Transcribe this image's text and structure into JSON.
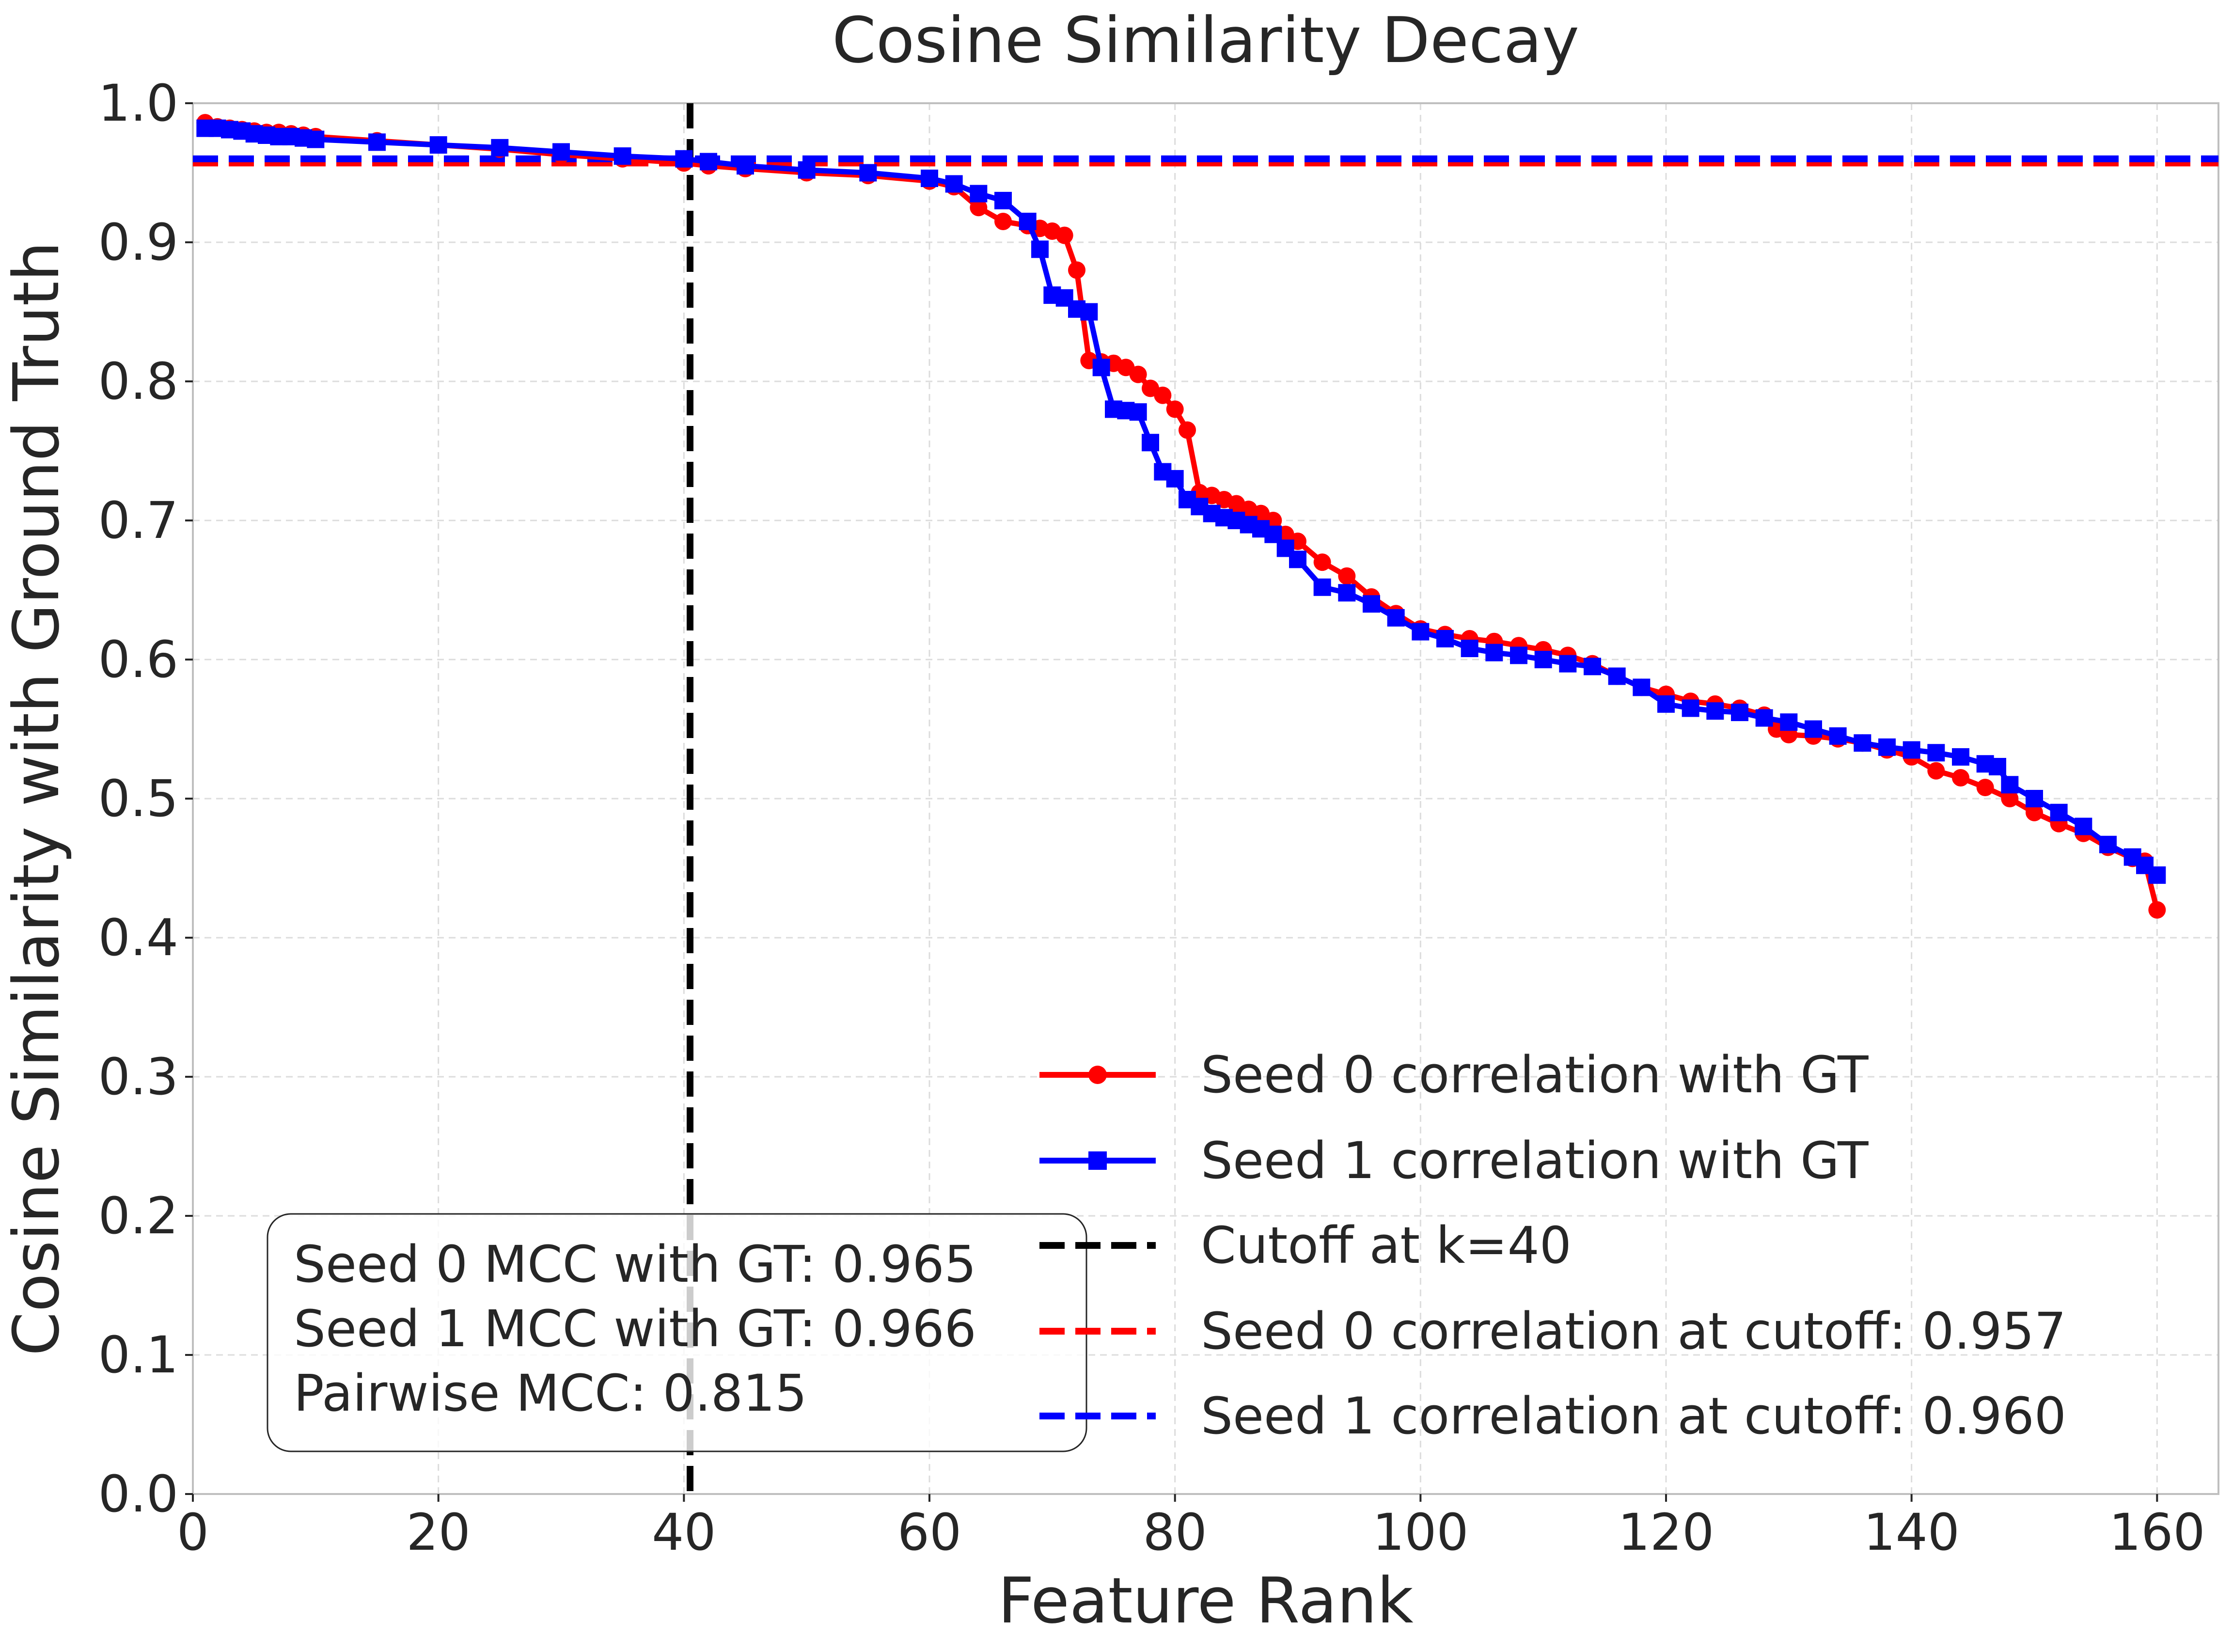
{
  "chart_data": {
    "type": "line",
    "title": "Cosine Similarity Decay",
    "xlabel": "Feature Rank",
    "ylabel": "Cosine Similarity with Ground Truth",
    "xlim": [
      0,
      165
    ],
    "ylim": [
      0.0,
      1.0
    ],
    "x_ticks": [
      0,
      20,
      40,
      60,
      80,
      100,
      120,
      140,
      160
    ],
    "y_ticks": [
      0.0,
      0.1,
      0.2,
      0.3,
      0.4,
      0.5,
      0.6,
      0.7,
      0.8,
      0.9,
      1.0
    ],
    "grid": true,
    "legend_position": "lower-right",
    "series": [
      {
        "name": "Seed 0 correlation with GT",
        "color": "#ff0000",
        "marker": "circle",
        "x": [
          1,
          2,
          3,
          4,
          5,
          6,
          7,
          8,
          9,
          10,
          15,
          20,
          25,
          30,
          35,
          40,
          42,
          45,
          50,
          55,
          60,
          62,
          64,
          66,
          68,
          69,
          70,
          71,
          72,
          73,
          74,
          75,
          76,
          77,
          78,
          79,
          80,
          81,
          82,
          83,
          84,
          85,
          86,
          87,
          88,
          89,
          90,
          92,
          94,
          96,
          98,
          100,
          102,
          104,
          106,
          108,
          110,
          112,
          114,
          116,
          118,
          120,
          122,
          124,
          126,
          128,
          129,
          130,
          132,
          134,
          136,
          138,
          140,
          142,
          144,
          146,
          148,
          150,
          152,
          154,
          156,
          158,
          159,
          160
        ],
        "y": [
          0.986,
          0.983,
          0.982,
          0.981,
          0.98,
          0.979,
          0.979,
          0.978,
          0.977,
          0.976,
          0.973,
          0.97,
          0.967,
          0.963,
          0.96,
          0.957,
          0.955,
          0.953,
          0.95,
          0.948,
          0.944,
          0.94,
          0.925,
          0.915,
          0.912,
          0.91,
          0.908,
          0.905,
          0.88,
          0.815,
          0.814,
          0.813,
          0.81,
          0.805,
          0.795,
          0.79,
          0.78,
          0.765,
          0.72,
          0.718,
          0.715,
          0.712,
          0.708,
          0.705,
          0.7,
          0.69,
          0.685,
          0.67,
          0.66,
          0.645,
          0.633,
          0.622,
          0.618,
          0.615,
          0.613,
          0.61,
          0.607,
          0.603,
          0.597,
          0.588,
          0.58,
          0.575,
          0.57,
          0.568,
          0.565,
          0.56,
          0.55,
          0.546,
          0.545,
          0.543,
          0.54,
          0.535,
          0.53,
          0.52,
          0.515,
          0.508,
          0.5,
          0.49,
          0.482,
          0.475,
          0.465,
          0.457,
          0.455,
          0.42
        ]
      },
      {
        "name": "Seed 1 correlation with GT",
        "color": "#0000ff",
        "marker": "square",
        "x": [
          1,
          2,
          3,
          4,
          5,
          6,
          7,
          8,
          9,
          10,
          15,
          20,
          25,
          30,
          35,
          40,
          42,
          45,
          50,
          55,
          60,
          62,
          64,
          66,
          68,
          69,
          70,
          71,
          72,
          73,
          74,
          75,
          76,
          77,
          78,
          79,
          80,
          81,
          82,
          83,
          84,
          85,
          86,
          87,
          88,
          89,
          90,
          92,
          94,
          96,
          98,
          100,
          102,
          104,
          106,
          108,
          110,
          112,
          114,
          116,
          118,
          120,
          122,
          124,
          126,
          128,
          130,
          132,
          134,
          136,
          138,
          140,
          142,
          144,
          146,
          147,
          148,
          150,
          152,
          154,
          156,
          158,
          159,
          160
        ],
        "y": [
          0.982,
          0.982,
          0.981,
          0.98,
          0.978,
          0.977,
          0.976,
          0.976,
          0.975,
          0.974,
          0.972,
          0.97,
          0.968,
          0.965,
          0.962,
          0.96,
          0.958,
          0.955,
          0.952,
          0.95,
          0.946,
          0.942,
          0.935,
          0.93,
          0.915,
          0.895,
          0.862,
          0.86,
          0.852,
          0.85,
          0.81,
          0.78,
          0.779,
          0.778,
          0.756,
          0.735,
          0.73,
          0.715,
          0.71,
          0.705,
          0.702,
          0.7,
          0.697,
          0.694,
          0.69,
          0.68,
          0.672,
          0.652,
          0.648,
          0.64,
          0.63,
          0.62,
          0.615,
          0.608,
          0.605,
          0.603,
          0.6,
          0.597,
          0.595,
          0.588,
          0.58,
          0.568,
          0.565,
          0.563,
          0.562,
          0.558,
          0.555,
          0.55,
          0.545,
          0.54,
          0.537,
          0.535,
          0.533,
          0.53,
          0.525,
          0.523,
          0.51,
          0.5,
          0.49,
          0.48,
          0.467,
          0.458,
          0.452,
          0.445
        ]
      }
    ],
    "reference_lines": [
      {
        "name": "Cutoff at k=40",
        "orientation": "vertical",
        "value": 40.5,
        "color": "#000000"
      },
      {
        "name": "Seed 0 correlation at cutoff: 0.957",
        "orientation": "horizontal",
        "value": 0.957,
        "color": "#ff0000"
      },
      {
        "name": "Seed 1 correlation at cutoff: 0.960",
        "orientation": "horizontal",
        "value": 0.96,
        "color": "#0000ff"
      }
    ],
    "annotation": {
      "lines": [
        "Seed 0 MCC with GT: 0.965",
        "Seed 1 MCC with GT: 0.966",
        "Pairwise MCC: 0.815"
      ]
    }
  }
}
